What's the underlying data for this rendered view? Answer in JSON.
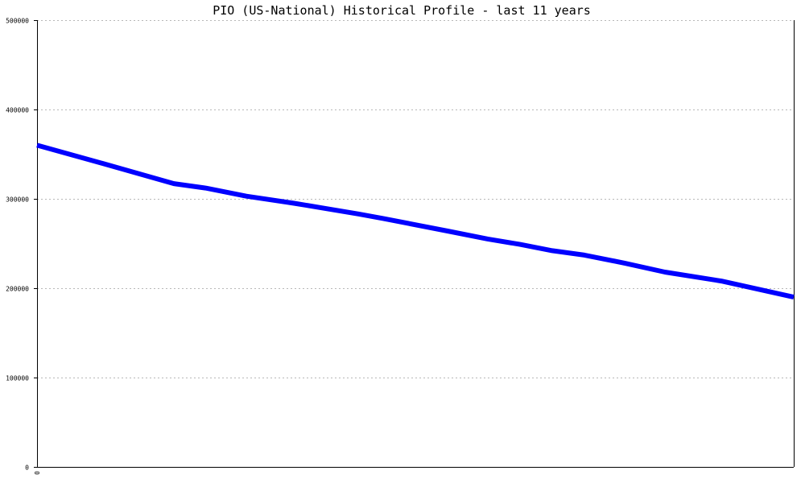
{
  "chart_data": {
    "type": "line",
    "title": "PIO (US-National) Historical Profile - last 11 years",
    "xlabel": "",
    "ylabel": "",
    "ylim": [
      0,
      500000
    ],
    "xlim": [
      0,
      1
    ],
    "grid": true,
    "y_ticks": [
      0,
      100000,
      200000,
      300000,
      400000,
      500000
    ],
    "y_tick_labels": [
      "0",
      "100000",
      "200000",
      "300000",
      "400000",
      "500000"
    ],
    "x_tick_labels": [
      "0"
    ],
    "series": [
      {
        "color": "#0000ff",
        "x": [
          0.0,
          0.0851,
          0.1809,
          0.2234,
          0.2766,
          0.3404,
          0.4255,
          0.4574,
          0.5426,
          0.5957,
          0.6383,
          0.6809,
          0.7234,
          0.7766,
          0.8298,
          0.9043,
          1.0
        ],
        "values": [
          360000,
          340000,
          317000,
          312000,
          303000,
          295000,
          283000,
          278000,
          264000,
          255000,
          249000,
          242000,
          237000,
          228000,
          218000,
          208000,
          190000
        ]
      }
    ]
  }
}
